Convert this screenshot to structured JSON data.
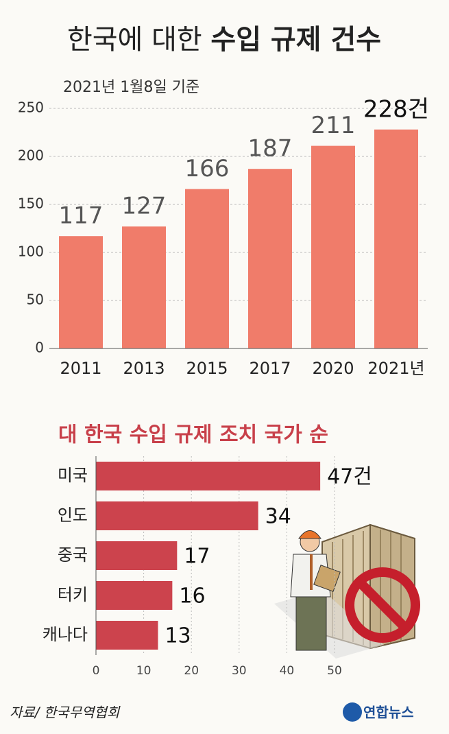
{
  "title_main": "한국에 대한",
  "title_bold": "수입 규제 건수",
  "chart_data": [
    {
      "type": "bar",
      "subtitle": "2021년 1월8일 기준",
      "categories": [
        "2011",
        "2013",
        "2015",
        "2017",
        "2020",
        "2021년"
      ],
      "values": [
        117,
        127,
        166,
        187,
        211,
        228
      ],
      "value_labels": [
        "117",
        "127",
        "166",
        "187",
        "211",
        "228건"
      ],
      "color": "#f07c6a",
      "ylim": [
        0,
        250
      ],
      "yticks": [
        0,
        50,
        100,
        150,
        200,
        250
      ],
      "grid": true
    },
    {
      "type": "barh",
      "title": "대 한국 수입 규제 조치 국가 순",
      "categories": [
        "미국",
        "인도",
        "중국",
        "터키",
        "캐나다"
      ],
      "values": [
        47,
        34,
        17,
        16,
        13
      ],
      "value_labels": [
        "47건",
        "34",
        "17",
        "16",
        "13"
      ],
      "color": "#cc434d",
      "xlim": [
        0,
        50
      ],
      "xticks": [
        0,
        10,
        20,
        30,
        40,
        50
      ],
      "grid": true
    }
  ],
  "source": "자료/ 한국무역협회",
  "credit": "연합뉴스"
}
